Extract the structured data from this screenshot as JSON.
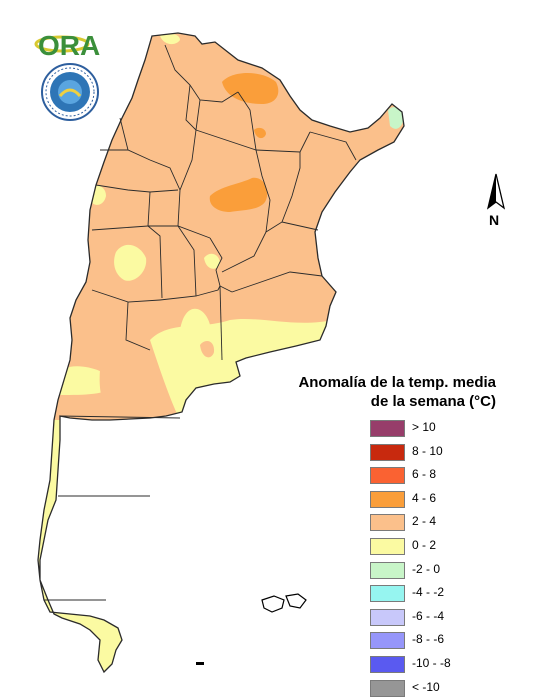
{
  "branding": {
    "logo_text": "ORA",
    "seal_icon": "smn-seal-icon"
  },
  "map": {
    "north_label": "N",
    "colors": {
      "border": "#2b2b2b",
      "warm_2_4": "#fbc08b",
      "warm_4_6": "#fa9e3a",
      "neutral_0_2": "#fbfaa2",
      "cool_0_-2": "#c8f5c8"
    }
  },
  "legend": {
    "title_line1": "Anomalía de la temp. media",
    "title_line2": "de la semana (°C)",
    "items": [
      {
        "label": "> 10",
        "color": "#973d6a"
      },
      {
        "label": "8 - 10",
        "color": "#c8290e"
      },
      {
        "label": "6 - 8",
        "color": "#fa6232"
      },
      {
        "label": "4 - 6",
        "color": "#fa9e3a"
      },
      {
        "label": "2 - 4",
        "color": "#fbc08b"
      },
      {
        "label": "0 - 2",
        "color": "#fbfaa2"
      },
      {
        "label": "-2 - 0",
        "color": "#c8f5c8"
      },
      {
        "label": "-4 - -2",
        "color": "#96f5f0"
      },
      {
        "label": "-6 - -4",
        "color": "#c8c8fa"
      },
      {
        "label": "-8 - -6",
        "color": "#9696fa"
      },
      {
        "label": "-10 - -8",
        "color": "#5a5af0"
      },
      {
        "label": "< -10",
        "color": "#969696"
      }
    ]
  }
}
